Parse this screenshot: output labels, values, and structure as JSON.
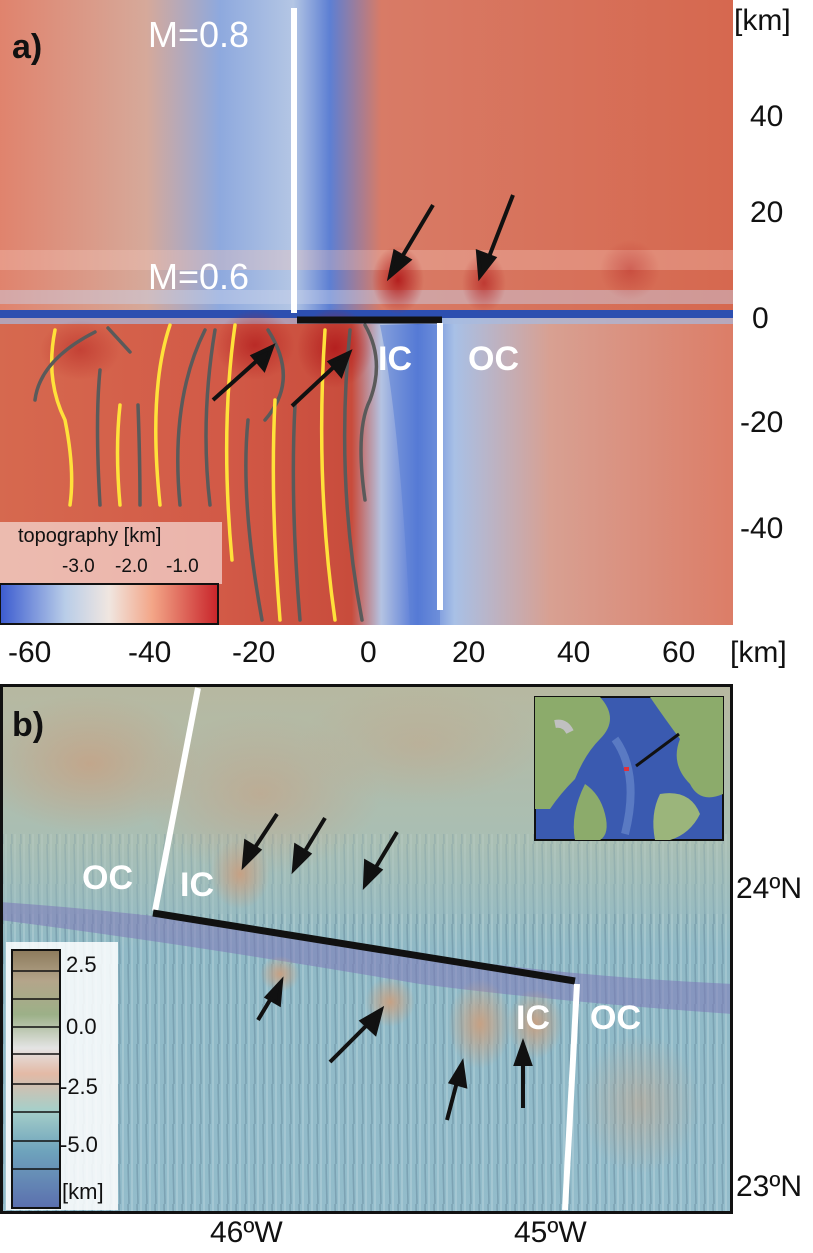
{
  "panel_a": {
    "label": "a)",
    "labels": {
      "m_top": "M=0.8",
      "m_bottom": "M=0.6",
      "ic": "IC",
      "oc": "OC"
    },
    "x_ticks": [
      "-60",
      "-40",
      "-20",
      "0",
      "20",
      "40",
      "60"
    ],
    "x_unit": "[km]",
    "y_ticks": [
      "40",
      "20",
      "0",
      "-20",
      "-40"
    ],
    "y_unit": "[km]",
    "colorbar": {
      "title": "topography [km]",
      "ticks": [
        "-3.0",
        "-2.0",
        "-1.0"
      ],
      "colors": [
        "#3b5bd0",
        "#b9cde8",
        "#f0e6e0",
        "#f3a587",
        "#c8242a"
      ]
    },
    "colors": {
      "deep": "#4f74d6",
      "shallow": "#d7594a",
      "background": "#e0806a",
      "yellow_lines": "#ffe13a",
      "gray_lines": "#555555"
    }
  },
  "panel_b": {
    "label": "b)",
    "labels": {
      "oc_left": "OC",
      "ic_left": "IC",
      "ic_right": "IC",
      "oc_right": "OC"
    },
    "x_ticks": [
      "46ºW",
      "45ºW"
    ],
    "y_ticks": [
      "24ºN",
      "23ºN"
    ],
    "colorbar": {
      "ticks": [
        "2.5",
        "0.0",
        "-2.5",
        "-5.0",
        "[km]"
      ],
      "colors": [
        "#8c7a5c",
        "#b4a58a",
        "#9cb088",
        "#e4e4e4",
        "#e3b9a5",
        "#a6cfc9",
        "#6ea3bc",
        "#5b6fae"
      ]
    },
    "colors": {
      "seafloor": "#8fb9c6",
      "highs": "#c9ab8f",
      "valley": "#7d79b8",
      "land": "#8cab6b",
      "ocean_inset": "#3a5ab0"
    }
  }
}
